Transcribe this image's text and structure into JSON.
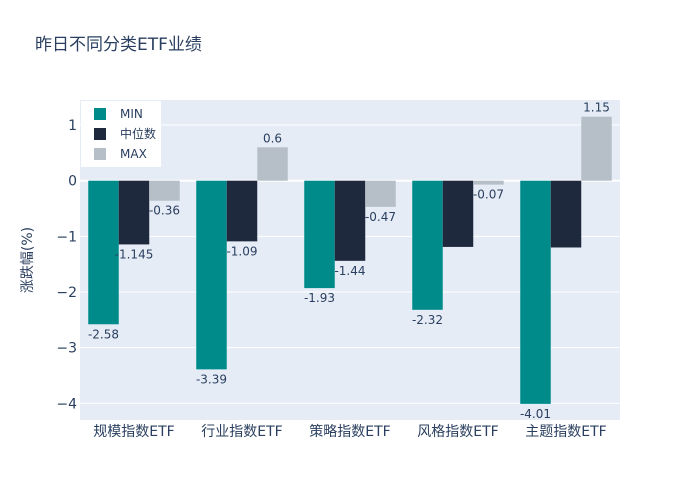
{
  "chart_data": {
    "type": "bar",
    "title": "昨日不同分类ETF业绩",
    "xlabel": "",
    "ylabel": "涨跌幅(%)",
    "ylim": [
      -4.3,
      1.45
    ],
    "yticks": [
      -4,
      -3,
      -2,
      -1,
      0,
      1
    ],
    "ytick_labels": [
      "−4",
      "−3",
      "−2",
      "−1",
      "0",
      "1"
    ],
    "grid": true,
    "legend_position": "top-left",
    "categories": [
      "规模指数ETF",
      "行业指数ETF",
      "策略指数ETF",
      "风格指数ETF",
      "主题指数ETF"
    ],
    "series": [
      {
        "name": "MIN",
        "color": "#008b8b",
        "values": [
          -2.58,
          -3.39,
          -1.93,
          -2.32,
          -4.01
        ],
        "labels": [
          "-2.58",
          "-3.39",
          "-1.93",
          "-2.32",
          "-4.01"
        ]
      },
      {
        "name": "中位数",
        "color": "#1f293d",
        "values": [
          -1.145,
          -1.09,
          -1.44,
          -1.19,
          -1.2
        ],
        "labels": [
          "-1.145",
          "-1.09",
          "-1.44",
          "",
          ""
        ]
      },
      {
        "name": "MAX",
        "color": "#b6bec7",
        "values": [
          -0.36,
          0.6,
          -0.47,
          -0.07,
          1.15
        ],
        "labels": [
          "-0.36",
          "0.6",
          "-0.47",
          "-0.07",
          "1.15"
        ]
      }
    ]
  }
}
